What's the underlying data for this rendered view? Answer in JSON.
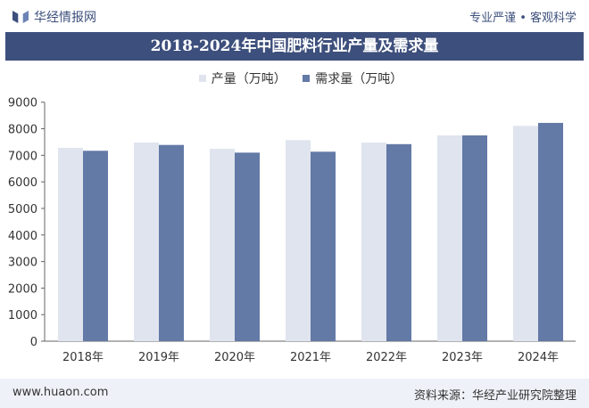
{
  "header": {
    "logo_text": "华经情报网",
    "slogan": "专业严谨 • 客观科学"
  },
  "footer": {
    "website": "www.huaon.com",
    "source": "资料来源：华经产业研究院整理"
  },
  "colors": {
    "title_bg": "#3d4f7c",
    "production": "#dfe4ee",
    "demand": "#6379a6"
  },
  "chart_data": {
    "type": "bar",
    "title": "2018-2024年中国肥料行业产量及需求量",
    "categories": [
      "2018年",
      "2019年",
      "2020年",
      "2021年",
      "2022年",
      "2023年",
      "2024年"
    ],
    "series": [
      {
        "name": "产量（万吨）",
        "values": [
          7280,
          7480,
          7245,
          7570,
          7480,
          7750,
          8110
        ]
      },
      {
        "name": "需求量（万吨）",
        "values": [
          7170,
          7390,
          7100,
          7135,
          7420,
          7750,
          8220
        ]
      }
    ],
    "yticks": [
      0,
      1000,
      2000,
      3000,
      4000,
      5000,
      6000,
      7000,
      8000,
      9000
    ],
    "ylim": [
      0,
      9000
    ],
    "legend": "top-center",
    "grid": false
  }
}
